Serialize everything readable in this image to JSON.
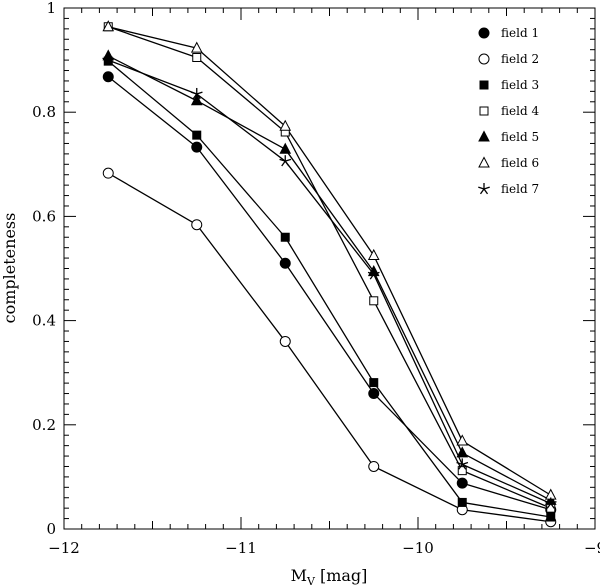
{
  "chart_data": {
    "type": "line",
    "xlabel": "M",
    "xlabel_sub": "V",
    "xlabel_units": "[mag]",
    "ylabel": "completeness",
    "xlim": [
      -12,
      -9
    ],
    "ylim": [
      0,
      1
    ],
    "xticks": [
      -12,
      -11,
      -10,
      -9
    ],
    "yticks": [
      0,
      0.2,
      0.4,
      0.6,
      0.8,
      1
    ],
    "xtick_labels": [
      "−12",
      "−11",
      "−10",
      "−9"
    ],
    "ytick_labels": [
      "0",
      "0.2",
      "0.4",
      "0.6",
      "0.8",
      "1"
    ],
    "x": [
      -11.75,
      -11.25,
      -10.75,
      -10.25,
      -9.75,
      -9.25
    ],
    "legend_position": "top-right",
    "series": [
      {
        "name": "field 1",
        "marker": "filled-circle",
        "values": [
          0.868,
          0.733,
          0.51,
          0.26,
          0.088,
          0.037
        ]
      },
      {
        "name": "field 2",
        "marker": "open-circle",
        "values": [
          0.683,
          0.584,
          0.36,
          0.12,
          0.037,
          0.014
        ]
      },
      {
        "name": "field 3",
        "marker": "filled-square",
        "values": [
          0.898,
          0.756,
          0.56,
          0.281,
          0.051,
          0.023
        ]
      },
      {
        "name": "field 4",
        "marker": "open-square",
        "values": [
          0.964,
          0.905,
          0.762,
          0.438,
          0.112,
          0.04
        ]
      },
      {
        "name": "field 5",
        "marker": "filled-triangle",
        "values": [
          0.908,
          0.822,
          0.729,
          0.494,
          0.146,
          0.055
        ]
      },
      {
        "name": "field 6",
        "marker": "open-triangle",
        "values": [
          0.964,
          0.923,
          0.773,
          0.525,
          0.169,
          0.065
        ]
      },
      {
        "name": "field 7",
        "marker": "star",
        "values": [
          0.9,
          0.835,
          0.706,
          0.489,
          0.124,
          0.049
        ]
      }
    ]
  }
}
